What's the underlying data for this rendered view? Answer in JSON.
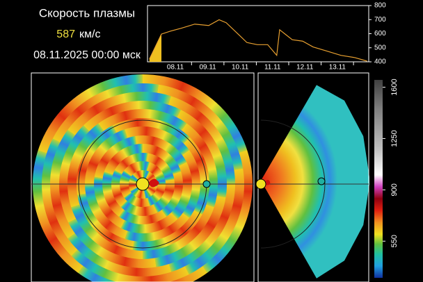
{
  "header": {
    "title": "Скорость плазмы",
    "speed": 587,
    "unit": "км/с",
    "date": "08.11.2025 00:00 мск"
  },
  "chart_data": [
    {
      "type": "line",
      "x": [
        7.7,
        8.07,
        8.35,
        8.67,
        9.1,
        9.53,
        9.85,
        10.07,
        10.39,
        10.71,
        11.03,
        11.35,
        11.63,
        11.72,
        11.89,
        12.11,
        12.43,
        12.75,
        13.18,
        13.61,
        14.04,
        14.42
      ],
      "series": [
        {
          "color": "#e8a030",
          "values": [
            420,
            597,
            618,
            638,
            668,
            658,
            699,
            678,
            608,
            537,
            522,
            522,
            446,
            628,
            597,
            557,
            547,
            506,
            476,
            446,
            430,
            405
          ]
        }
      ],
      "xlim": [
        7.64,
        14.47
      ],
      "xticks": [
        {
          "value": 8.5,
          "label": "08.11"
        },
        {
          "value": 9.5,
          "label": "09.11"
        },
        {
          "value": 10.5,
          "label": "10.11"
        },
        {
          "value": 11.5,
          "label": "11.11"
        },
        {
          "value": 12.5,
          "label": "12.11"
        },
        {
          "value": 13.5,
          "label": "13.11"
        }
      ],
      "ylim": [
        400,
        800
      ],
      "yticks": [
        400,
        500,
        600,
        700,
        800
      ]
    },
    {
      "type": "colorbar",
      "ylim": [
        300,
        1650
      ],
      "yticks": [
        550,
        900,
        1250,
        1600
      ]
    }
  ]
}
